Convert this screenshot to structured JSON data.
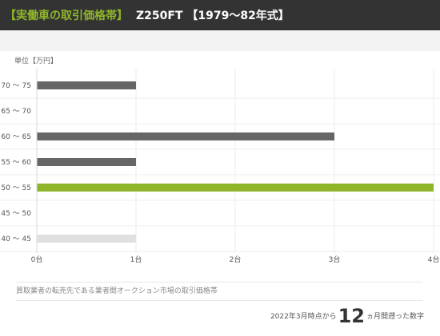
{
  "header": {
    "tag": "【実働車の取引価格帯】",
    "model": "Z250FT 【1979〜82年式】"
  },
  "unit_label": "単位【万円】",
  "note": "買取業者の転売先である業者間オークション市場の取引価格帯",
  "footer": {
    "prefix": "2022年3月時点から",
    "number": "12",
    "suffix": "ヵ月間遡った数字"
  },
  "colors": {
    "header_bg": "#333333",
    "accent": "#8fb62a",
    "bar_default": "#666666",
    "bar_light": "#e0e0e0"
  },
  "chart_data": {
    "type": "bar",
    "orientation": "horizontal",
    "categories": [
      "70 〜 75",
      "65 〜 70",
      "60 〜 65",
      "55 〜 60",
      "50 〜 55",
      "45 〜 50",
      "40 〜 45"
    ],
    "values": [
      1,
      0,
      3,
      1,
      4,
      0,
      1
    ],
    "bar_colors": [
      "#666666",
      "#666666",
      "#666666",
      "#666666",
      "#8fb62a",
      "#666666",
      "#e0e0e0"
    ],
    "xticks": [
      "0台",
      "1台",
      "2台",
      "3台",
      "4台"
    ],
    "xlim": [
      0,
      4
    ],
    "ylabel": "単位【万円】",
    "grid": true
  }
}
